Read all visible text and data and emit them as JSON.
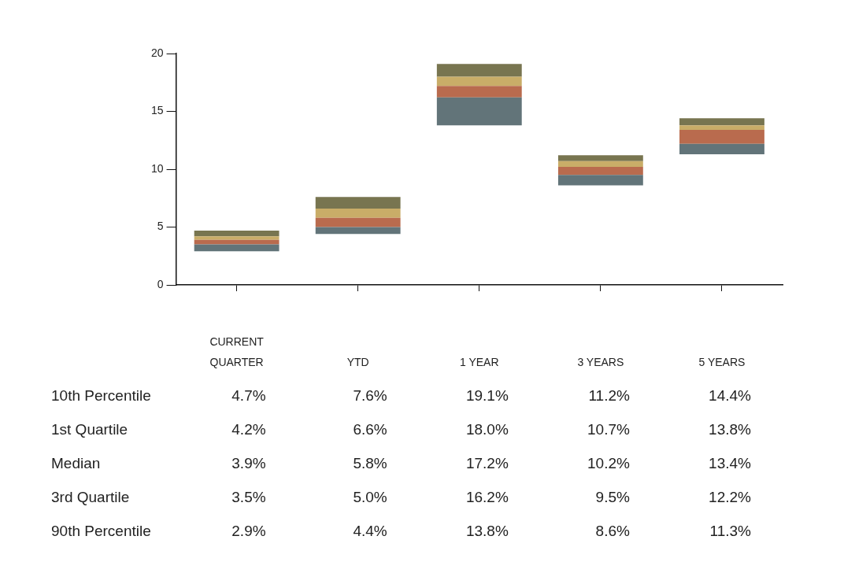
{
  "chart_data": {
    "type": "bar",
    "categories": [
      "CURRENT QUARTER",
      "YTD",
      "1 YEAR",
      "3 YEARS",
      "5 YEARS"
    ],
    "series": [
      {
        "color": "#627479",
        "base": [
          2.9,
          4.4,
          13.8,
          8.6,
          11.3
        ],
        "values": [
          0.6,
          0.6,
          2.4,
          0.9,
          0.9
        ]
      },
      {
        "color": "#b96b4e",
        "base": [
          3.5,
          5.0,
          16.2,
          9.5,
          12.2
        ],
        "values": [
          0.4,
          0.8,
          1.0,
          0.7,
          1.2
        ]
      },
      {
        "color": "#c9ad68",
        "base": [
          3.9,
          5.8,
          17.2,
          10.2,
          13.4
        ],
        "values": [
          0.3,
          0.8,
          0.8,
          0.5,
          0.4
        ]
      },
      {
        "color": "#787550",
        "base": [
          4.2,
          6.6,
          18.0,
          10.7,
          13.8
        ],
        "values": [
          0.5,
          1.0,
          1.1,
          0.5,
          0.6
        ]
      }
    ],
    "ylim": [
      0,
      20
    ],
    "yticks": [
      0,
      5,
      10,
      15,
      20
    ],
    "grid": false,
    "legend": false,
    "tick_labels": "y",
    "annotations": [
      "10th Percentile",
      "4.7%",
      "7.6%",
      "19.1%",
      "11.2%",
      "14.4%",
      "1st Quartile",
      "4.2%",
      "6.6%",
      "18.0%",
      "10.7%",
      "13.8%",
      "Median",
      "3.9%",
      "5.8%",
      "17.2%",
      "10.2%",
      "13.4%",
      "3rd Quartile",
      "3.5%",
      "5.0%",
      "16.2%",
      "9.5%",
      "12.2%",
      "90th Percentile",
      "2.9%",
      "4.4%",
      "13.8%",
      "8.6%",
      "11.3%"
    ]
  }
}
